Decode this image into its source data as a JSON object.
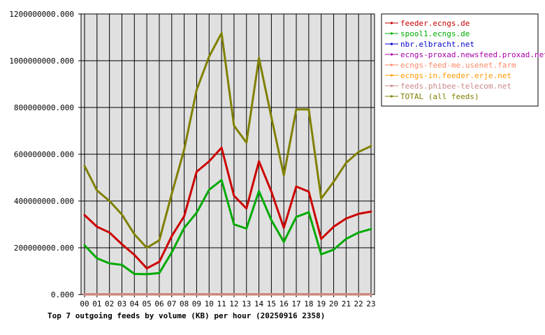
{
  "chart_data": {
    "type": "line",
    "title": "Top 7 outgoing feeds by volume (KB) per hour (20250916 2358)",
    "xlabel": "",
    "ylabel": "",
    "x": [
      "00",
      "01",
      "02",
      "03",
      "04",
      "05",
      "06",
      "07",
      "08",
      "09",
      "10",
      "11",
      "12",
      "13",
      "14",
      "15",
      "16",
      "17",
      "18",
      "19",
      "20",
      "21",
      "22",
      "23"
    ],
    "ylim": [
      0,
      1200000000
    ],
    "yticks": [
      "0.000",
      "200000000.000",
      "400000000.000",
      "600000000.000",
      "800000000.000",
      "1000000000.000",
      "1200000000.000"
    ],
    "yticks_values": [
      0,
      200000000,
      400000000,
      600000000,
      800000000,
      1000000000,
      1200000000
    ],
    "grid": true,
    "legend_position": "top-right",
    "series": [
      {
        "name": "feeder.ecngs.de",
        "color": "#cc0000",
        "values": [
          340000000,
          290000000,
          265000000,
          215000000,
          170000000,
          112000000,
          140000000,
          250000000,
          335000000,
          525000000,
          570000000,
          628000000,
          422000000,
          368000000,
          570000000,
          440000000,
          285000000,
          462000000,
          440000000,
          238000000,
          290000000,
          325000000,
          345000000,
          355000000
        ]
      },
      {
        "name": "spool1.ecngs.de",
        "color": "#00aa00",
        "values": [
          210000000,
          155000000,
          133000000,
          127000000,
          88000000,
          87000000,
          92000000,
          180000000,
          285000000,
          350000000,
          448000000,
          490000000,
          300000000,
          282000000,
          442000000,
          318000000,
          225000000,
          332000000,
          352000000,
          172000000,
          192000000,
          238000000,
          265000000,
          280000000
        ]
      },
      {
        "name": "nbr.elbracht.net",
        "color": "#0000cc",
        "values": [
          500000,
          500000,
          500000,
          500000,
          500000,
          500000,
          500000,
          500000,
          500000,
          500000,
          500000,
          500000,
          500000,
          500000,
          500000,
          500000,
          500000,
          500000,
          500000,
          500000,
          500000,
          500000,
          500000,
          500000
        ]
      },
      {
        "name": "ecngs-proxad.newsfeed.proxad.net",
        "color": "#aa00aa",
        "values": [
          500000,
          500000,
          500000,
          500000,
          500000,
          500000,
          500000,
          500000,
          500000,
          500000,
          500000,
          500000,
          500000,
          500000,
          500000,
          500000,
          500000,
          500000,
          500000,
          500000,
          500000,
          500000,
          500000,
          500000
        ]
      },
      {
        "name": "ecngs-feed-me.usenet.farm",
        "color": "#ff8866",
        "values": [
          500000,
          500000,
          500000,
          500000,
          500000,
          500000,
          500000,
          500000,
          500000,
          500000,
          500000,
          500000,
          500000,
          500000,
          500000,
          500000,
          500000,
          500000,
          500000,
          500000,
          500000,
          500000,
          500000,
          500000
        ]
      },
      {
        "name": "ecngs-in.feeder.erje.net",
        "color": "#ff9900",
        "values": [
          500000,
          500000,
          500000,
          500000,
          500000,
          500000,
          500000,
          500000,
          500000,
          500000,
          500000,
          500000,
          500000,
          500000,
          500000,
          500000,
          500000,
          500000,
          500000,
          500000,
          500000,
          500000,
          500000,
          500000
        ]
      },
      {
        "name": "feeds.phibee-telecom.net",
        "color": "#cc8888",
        "values": [
          500000,
          500000,
          500000,
          500000,
          500000,
          500000,
          500000,
          500000,
          500000,
          500000,
          500000,
          500000,
          500000,
          500000,
          500000,
          500000,
          500000,
          500000,
          500000,
          500000,
          500000,
          500000,
          500000,
          500000
        ]
      },
      {
        "name": "TOTAL (all feeds)",
        "color": "#808000",
        "values": [
          550000000,
          445000000,
          400000000,
          342000000,
          258000000,
          200000000,
          232000000,
          430000000,
          620000000,
          875000000,
          1018000000,
          1118000000,
          722000000,
          650000000,
          1012000000,
          758000000,
          510000000,
          792000000,
          792000000,
          410000000,
          482000000,
          563000000,
          610000000,
          635000000
        ]
      }
    ]
  }
}
